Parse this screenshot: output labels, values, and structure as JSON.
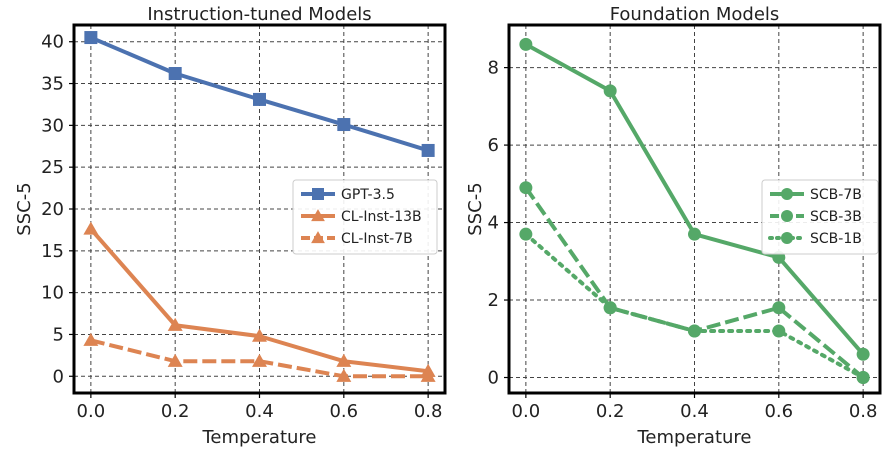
{
  "chart_data": [
    {
      "type": "line",
      "title": "Instruction-tuned Models",
      "xlabel": "Temperature",
      "ylabel": "SSC-5",
      "x": [
        0.0,
        0.2,
        0.4,
        0.6,
        0.8
      ],
      "xticks": [
        "0.0",
        "0.2",
        "0.4",
        "0.6",
        "0.8"
      ],
      "yticks": [
        "0",
        "5",
        "10",
        "15",
        "20",
        "25",
        "30",
        "35",
        "40"
      ],
      "ylim": [
        -2,
        42
      ],
      "grid": true,
      "legend_position": "center-right",
      "series": [
        {
          "name": "GPT-3.5",
          "values": [
            40.5,
            36.2,
            33.1,
            30.1,
            27.0
          ],
          "color": "#4c72b0",
          "marker": "square",
          "line": "solid"
        },
        {
          "name": "CL-Inst-13B",
          "values": [
            17.6,
            6.1,
            4.8,
            1.8,
            0.6
          ],
          "color": "#dd8452",
          "marker": "triangle",
          "line": "solid"
        },
        {
          "name": "CL-Inst-7B",
          "values": [
            4.3,
            1.8,
            1.8,
            0.0,
            0.0
          ],
          "color": "#dd8452",
          "marker": "triangle",
          "line": "dashed"
        }
      ]
    },
    {
      "type": "line",
      "title": "Foundation Models",
      "xlabel": "Temperature",
      "ylabel": "SSC-5",
      "x": [
        0.0,
        0.2,
        0.4,
        0.6,
        0.8
      ],
      "xticks": [
        "0.0",
        "0.2",
        "0.4",
        "0.6",
        "0.8"
      ],
      "yticks": [
        "0",
        "2",
        "4",
        "6",
        "8"
      ],
      "ylim": [
        -0.4,
        9.1
      ],
      "grid": true,
      "legend_position": "center-right",
      "series": [
        {
          "name": "SCB-7B",
          "values": [
            8.6,
            7.4,
            3.7,
            3.1,
            0.6
          ],
          "color": "#55a868",
          "marker": "circle",
          "line": "solid"
        },
        {
          "name": "SCB-3B",
          "values": [
            4.9,
            1.8,
            1.2,
            1.8,
            0.0
          ],
          "color": "#55a868",
          "marker": "circle",
          "line": "dashed"
        },
        {
          "name": "SCB-1B",
          "values": [
            3.7,
            1.8,
            1.2,
            1.2,
            0.0
          ],
          "color": "#55a868",
          "marker": "circle",
          "line": "dotted"
        }
      ]
    }
  ]
}
